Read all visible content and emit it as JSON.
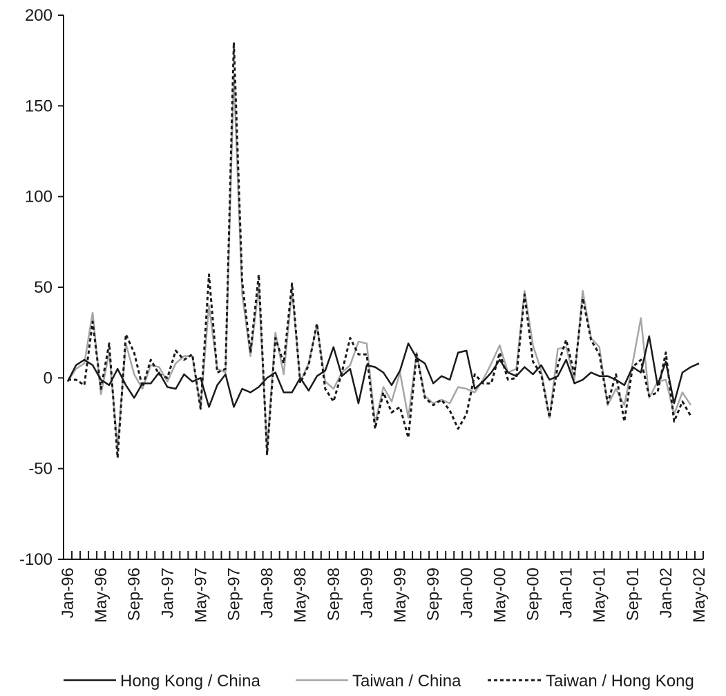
{
  "chart_data": {
    "type": "line",
    "title": "",
    "xlabel": "",
    "ylabel": "",
    "ylim": [
      -100,
      200
    ],
    "y_ticks": [
      -100,
      -50,
      0,
      50,
      100,
      150,
      200
    ],
    "x_tick_labels": [
      "Jan-96",
      "May-96",
      "Sep-96",
      "Jan-97",
      "May-97",
      "Sep-97",
      "Jan-98",
      "May-98",
      "Sep-98",
      "Jan-99",
      "May-99",
      "Sep-99",
      "Jan-00",
      "May-00",
      "Sep-00",
      "Jan-01",
      "May-01",
      "Sep-01",
      "Jan-02",
      "May-02"
    ],
    "x_tick_every_months": 4,
    "grid": false,
    "legend_position": "bottom",
    "series": [
      {
        "name": "Hong Kong / China",
        "color": "#1a1a1a",
        "dash": "solid",
        "values": [
          -2,
          7,
          10,
          7,
          -1,
          -4,
          5,
          -4,
          -11,
          -3,
          -3,
          3,
          -5,
          -6,
          2,
          -2,
          0,
          -16,
          -4,
          2,
          -16,
          -6,
          -8,
          -5,
          0,
          3,
          -8,
          -8,
          0,
          -7,
          1,
          4,
          17,
          1,
          5,
          -14,
          7,
          6,
          3,
          -4,
          4,
          19,
          11,
          8,
          -3,
          1,
          -1,
          14,
          15,
          -6,
          -2,
          3,
          10,
          3,
          1,
          6,
          2,
          7,
          -1,
          1,
          10,
          -3,
          -1,
          3,
          1,
          1,
          -1,
          -4,
          6,
          3,
          23,
          -4,
          9,
          -14,
          3,
          6,
          8
        ]
      },
      {
        "name": "Taiwan / China",
        "color": "#a6a6a6",
        "dash": "solid",
        "values": [
          -2,
          5,
          8,
          36,
          -9,
          14,
          -38,
          19,
          2,
          -6,
          7,
          6,
          -2,
          8,
          12,
          12,
          -16,
          40,
          5,
          3,
          167,
          46,
          12,
          50,
          -40,
          25,
          2,
          48,
          -2,
          8,
          29,
          -2,
          -6,
          3,
          7,
          20,
          19,
          -25,
          -5,
          -13,
          3,
          -22,
          14,
          -10,
          -14,
          -12,
          -14,
          -5,
          -6,
          -8,
          -1,
          8,
          18,
          3,
          5,
          48,
          18,
          4,
          -22,
          16,
          17,
          -1,
          48,
          22,
          17,
          -15,
          -6,
          -15,
          8,
          33,
          -11,
          -2,
          -1,
          -20,
          -8,
          -15
        ]
      },
      {
        "name": "Taiwan / Hong Kong",
        "color": "#1a1a1a",
        "dash": "dotted",
        "values": [
          -1,
          -1,
          -4,
          31,
          -6,
          19,
          -44,
          24,
          14,
          -5,
          10,
          2,
          0,
          15,
          10,
          13,
          -17,
          57,
          3,
          5,
          185,
          53,
          14,
          57,
          -42,
          22,
          8,
          52,
          -3,
          7,
          30,
          -6,
          -13,
          3,
          22,
          13,
          13,
          -28,
          -8,
          -19,
          -16,
          -33,
          13,
          -11,
          -15,
          -12,
          -18,
          -28,
          -20,
          2,
          -3,
          -3,
          14,
          -1,
          0,
          46,
          9,
          2,
          -22,
          7,
          21,
          2,
          44,
          21,
          13,
          -14,
          2,
          -24,
          6,
          10,
          -10,
          -8,
          14,
          -24,
          -13,
          -21
        ]
      }
    ]
  }
}
